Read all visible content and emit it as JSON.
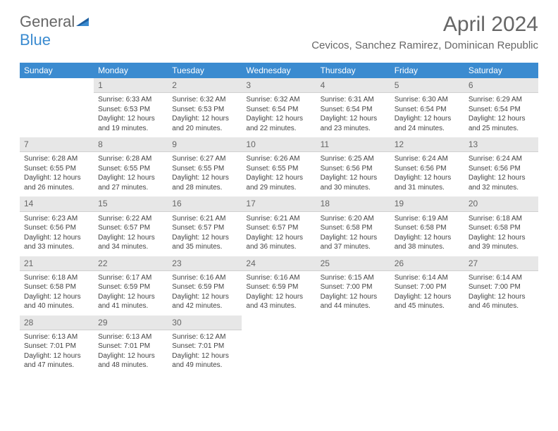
{
  "brand": {
    "part1": "General",
    "part2": "Blue"
  },
  "title": "April 2024",
  "location": "Cevicos, Sanchez Ramirez, Dominican Republic",
  "colors": {
    "header_bar": "#3b8bd0",
    "daynum_bg": "#e7e7e7",
    "text": "#444444",
    "title_text": "#666666",
    "background": "#ffffff"
  },
  "fonts": {
    "title_size_pt": 22,
    "location_size_pt": 11,
    "dow_size_pt": 9,
    "body_size_pt": 7.5
  },
  "days_of_week": [
    "Sunday",
    "Monday",
    "Tuesday",
    "Wednesday",
    "Thursday",
    "Friday",
    "Saturday"
  ],
  "weeks": [
    [
      {
        "n": "",
        "sunrise": "",
        "sunset": "",
        "daylight": ""
      },
      {
        "n": "1",
        "sunrise": "Sunrise: 6:33 AM",
        "sunset": "Sunset: 6:53 PM",
        "daylight": "Daylight: 12 hours and 19 minutes."
      },
      {
        "n": "2",
        "sunrise": "Sunrise: 6:32 AM",
        "sunset": "Sunset: 6:53 PM",
        "daylight": "Daylight: 12 hours and 20 minutes."
      },
      {
        "n": "3",
        "sunrise": "Sunrise: 6:32 AM",
        "sunset": "Sunset: 6:54 PM",
        "daylight": "Daylight: 12 hours and 22 minutes."
      },
      {
        "n": "4",
        "sunrise": "Sunrise: 6:31 AM",
        "sunset": "Sunset: 6:54 PM",
        "daylight": "Daylight: 12 hours and 23 minutes."
      },
      {
        "n": "5",
        "sunrise": "Sunrise: 6:30 AM",
        "sunset": "Sunset: 6:54 PM",
        "daylight": "Daylight: 12 hours and 24 minutes."
      },
      {
        "n": "6",
        "sunrise": "Sunrise: 6:29 AM",
        "sunset": "Sunset: 6:54 PM",
        "daylight": "Daylight: 12 hours and 25 minutes."
      }
    ],
    [
      {
        "n": "7",
        "sunrise": "Sunrise: 6:28 AM",
        "sunset": "Sunset: 6:55 PM",
        "daylight": "Daylight: 12 hours and 26 minutes."
      },
      {
        "n": "8",
        "sunrise": "Sunrise: 6:28 AM",
        "sunset": "Sunset: 6:55 PM",
        "daylight": "Daylight: 12 hours and 27 minutes."
      },
      {
        "n": "9",
        "sunrise": "Sunrise: 6:27 AM",
        "sunset": "Sunset: 6:55 PM",
        "daylight": "Daylight: 12 hours and 28 minutes."
      },
      {
        "n": "10",
        "sunrise": "Sunrise: 6:26 AM",
        "sunset": "Sunset: 6:55 PM",
        "daylight": "Daylight: 12 hours and 29 minutes."
      },
      {
        "n": "11",
        "sunrise": "Sunrise: 6:25 AM",
        "sunset": "Sunset: 6:56 PM",
        "daylight": "Daylight: 12 hours and 30 minutes."
      },
      {
        "n": "12",
        "sunrise": "Sunrise: 6:24 AM",
        "sunset": "Sunset: 6:56 PM",
        "daylight": "Daylight: 12 hours and 31 minutes."
      },
      {
        "n": "13",
        "sunrise": "Sunrise: 6:24 AM",
        "sunset": "Sunset: 6:56 PM",
        "daylight": "Daylight: 12 hours and 32 minutes."
      }
    ],
    [
      {
        "n": "14",
        "sunrise": "Sunrise: 6:23 AM",
        "sunset": "Sunset: 6:56 PM",
        "daylight": "Daylight: 12 hours and 33 minutes."
      },
      {
        "n": "15",
        "sunrise": "Sunrise: 6:22 AM",
        "sunset": "Sunset: 6:57 PM",
        "daylight": "Daylight: 12 hours and 34 minutes."
      },
      {
        "n": "16",
        "sunrise": "Sunrise: 6:21 AM",
        "sunset": "Sunset: 6:57 PM",
        "daylight": "Daylight: 12 hours and 35 minutes."
      },
      {
        "n": "17",
        "sunrise": "Sunrise: 6:21 AM",
        "sunset": "Sunset: 6:57 PM",
        "daylight": "Daylight: 12 hours and 36 minutes."
      },
      {
        "n": "18",
        "sunrise": "Sunrise: 6:20 AM",
        "sunset": "Sunset: 6:58 PM",
        "daylight": "Daylight: 12 hours and 37 minutes."
      },
      {
        "n": "19",
        "sunrise": "Sunrise: 6:19 AM",
        "sunset": "Sunset: 6:58 PM",
        "daylight": "Daylight: 12 hours and 38 minutes."
      },
      {
        "n": "20",
        "sunrise": "Sunrise: 6:18 AM",
        "sunset": "Sunset: 6:58 PM",
        "daylight": "Daylight: 12 hours and 39 minutes."
      }
    ],
    [
      {
        "n": "21",
        "sunrise": "Sunrise: 6:18 AM",
        "sunset": "Sunset: 6:58 PM",
        "daylight": "Daylight: 12 hours and 40 minutes."
      },
      {
        "n": "22",
        "sunrise": "Sunrise: 6:17 AM",
        "sunset": "Sunset: 6:59 PM",
        "daylight": "Daylight: 12 hours and 41 minutes."
      },
      {
        "n": "23",
        "sunrise": "Sunrise: 6:16 AM",
        "sunset": "Sunset: 6:59 PM",
        "daylight": "Daylight: 12 hours and 42 minutes."
      },
      {
        "n": "24",
        "sunrise": "Sunrise: 6:16 AM",
        "sunset": "Sunset: 6:59 PM",
        "daylight": "Daylight: 12 hours and 43 minutes."
      },
      {
        "n": "25",
        "sunrise": "Sunrise: 6:15 AM",
        "sunset": "Sunset: 7:00 PM",
        "daylight": "Daylight: 12 hours and 44 minutes."
      },
      {
        "n": "26",
        "sunrise": "Sunrise: 6:14 AM",
        "sunset": "Sunset: 7:00 PM",
        "daylight": "Daylight: 12 hours and 45 minutes."
      },
      {
        "n": "27",
        "sunrise": "Sunrise: 6:14 AM",
        "sunset": "Sunset: 7:00 PM",
        "daylight": "Daylight: 12 hours and 46 minutes."
      }
    ],
    [
      {
        "n": "28",
        "sunrise": "Sunrise: 6:13 AM",
        "sunset": "Sunset: 7:01 PM",
        "daylight": "Daylight: 12 hours and 47 minutes."
      },
      {
        "n": "29",
        "sunrise": "Sunrise: 6:13 AM",
        "sunset": "Sunset: 7:01 PM",
        "daylight": "Daylight: 12 hours and 48 minutes."
      },
      {
        "n": "30",
        "sunrise": "Sunrise: 6:12 AM",
        "sunset": "Sunset: 7:01 PM",
        "daylight": "Daylight: 12 hours and 49 minutes."
      },
      {
        "n": "",
        "sunrise": "",
        "sunset": "",
        "daylight": ""
      },
      {
        "n": "",
        "sunrise": "",
        "sunset": "",
        "daylight": ""
      },
      {
        "n": "",
        "sunrise": "",
        "sunset": "",
        "daylight": ""
      },
      {
        "n": "",
        "sunrise": "",
        "sunset": "",
        "daylight": ""
      }
    ]
  ]
}
